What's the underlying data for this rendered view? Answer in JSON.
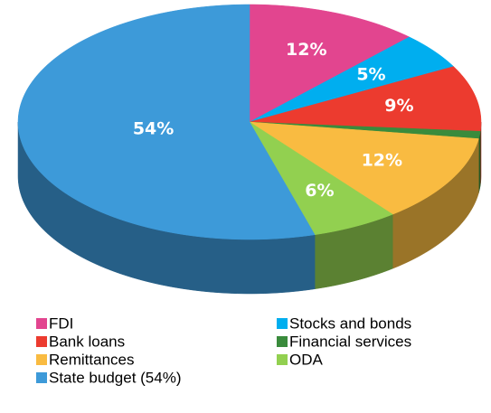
{
  "chart_data": {
    "type": "pie3d",
    "categories": [
      "FDI",
      "Stocks and bonds",
      "Bank loans",
      "Financial services",
      "Remittances",
      "ODA",
      "State budget (54%)"
    ],
    "values": [
      12,
      5,
      9,
      1,
      12,
      6,
      54
    ],
    "value_labels": [
      "12%",
      "5%",
      "9%",
      null,
      "12%",
      "6%",
      "54%"
    ],
    "colors": [
      "#e2458f",
      "#00aeef",
      "#ec3b2f",
      "#3a8b3c",
      "#f9bb41",
      "#92d050",
      "#3d9ad9"
    ],
    "legend": "bottom"
  }
}
